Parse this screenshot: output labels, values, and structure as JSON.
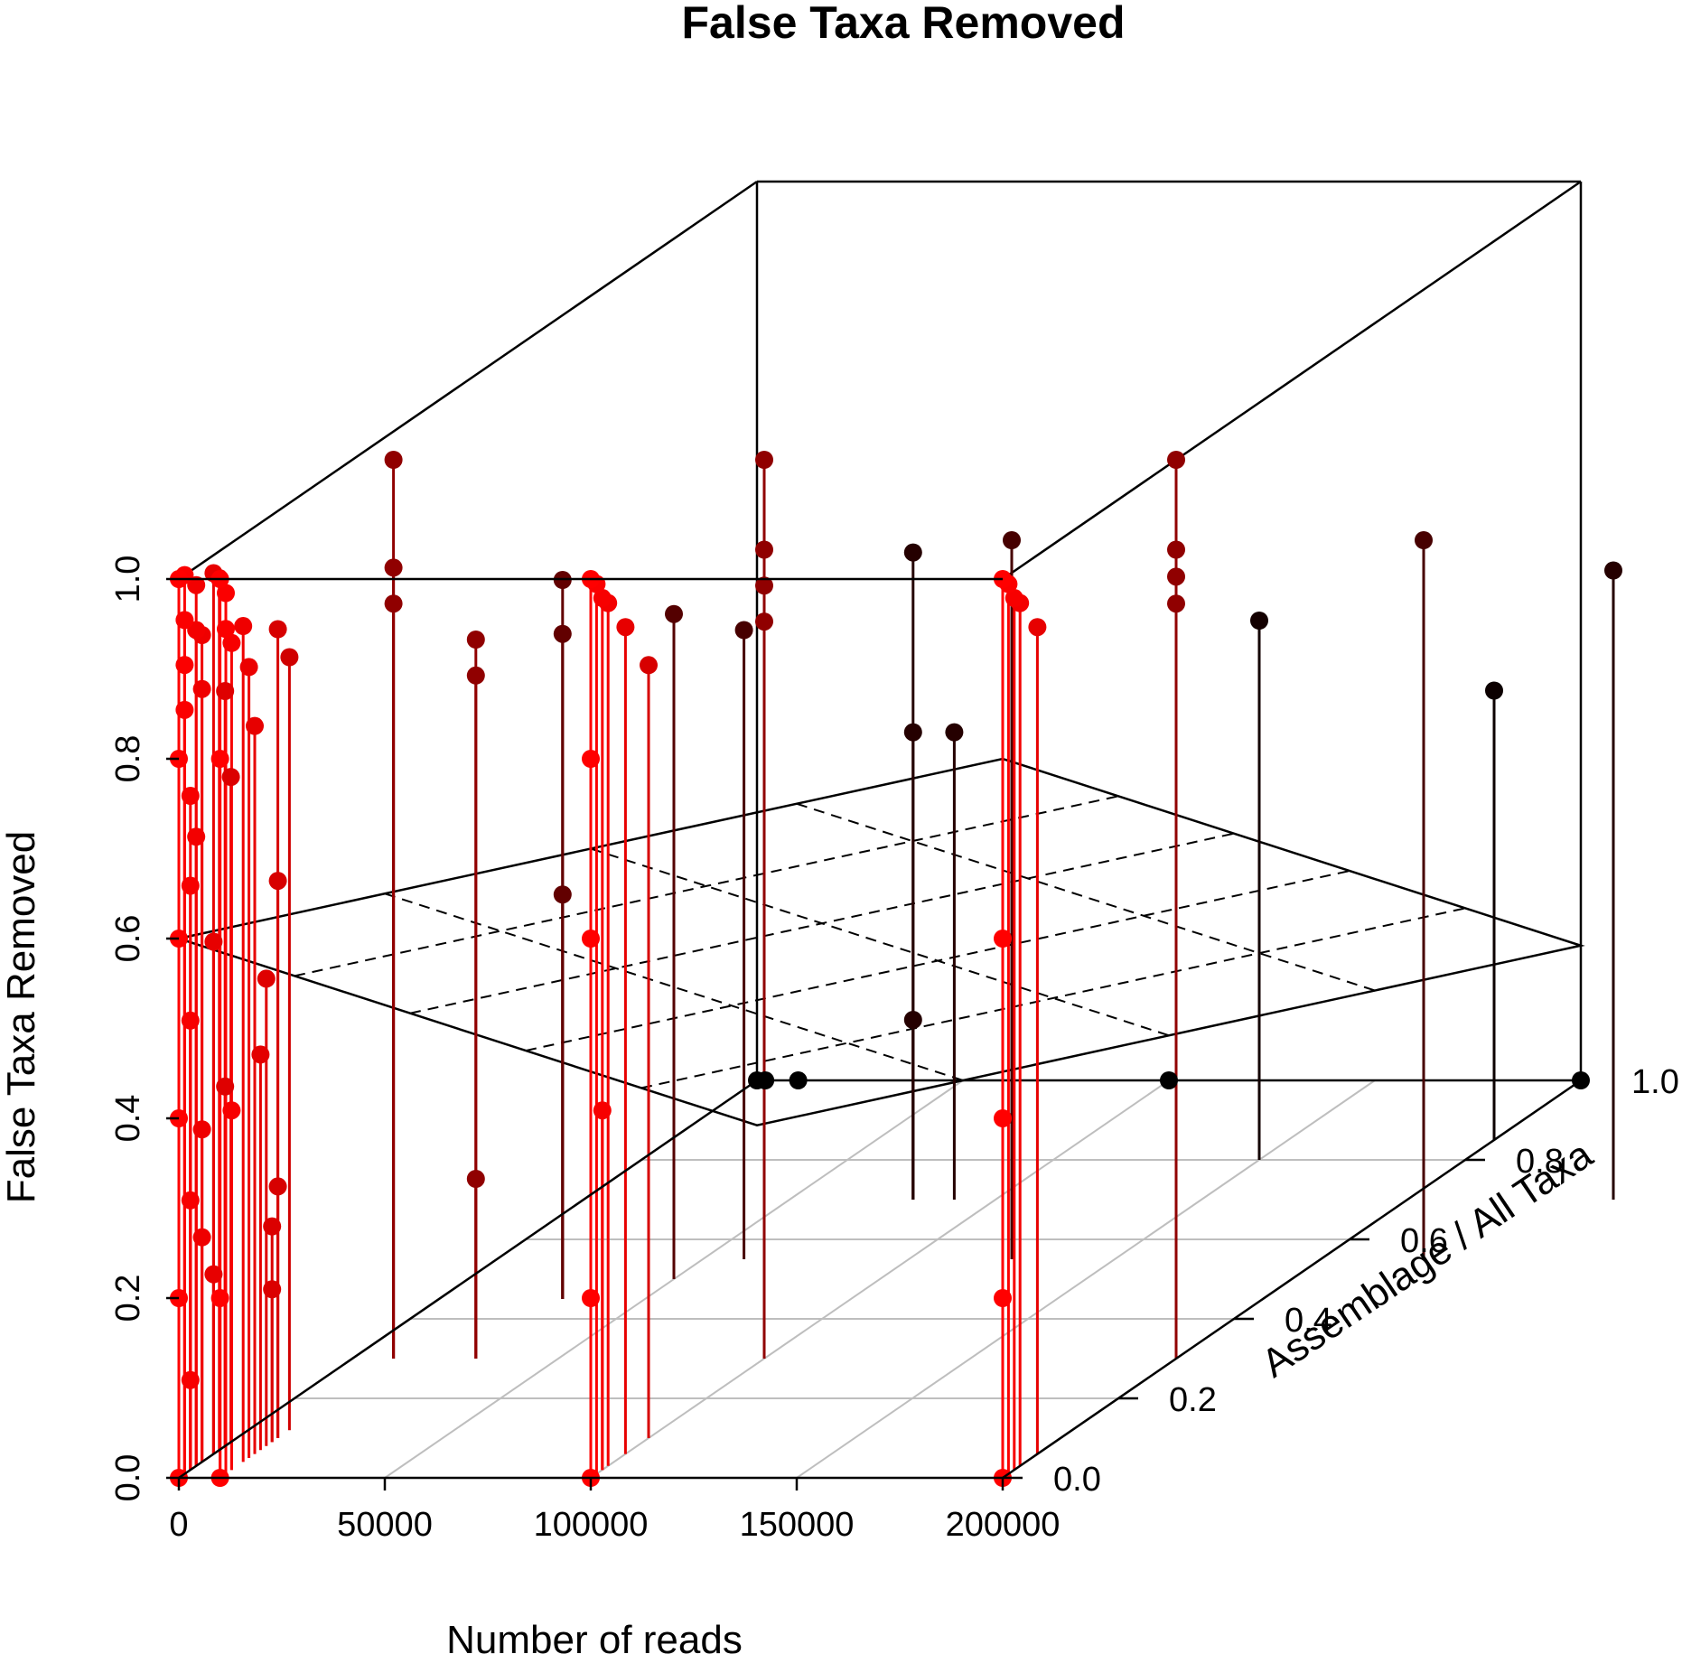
{
  "chart_data": {
    "type": "scatter3d",
    "title": "False Taxa Removed",
    "xlabel": "Number of reads",
    "ylabel": "Assemblage / All Taxa",
    "zlabel": "False Taxa Removed",
    "xlim": [
      0,
      200000
    ],
    "ylim": [
      0,
      1
    ],
    "zlim": [
      0,
      1
    ],
    "x_ticks": [
      "0",
      "50000",
      "100000",
      "150000",
      "200000"
    ],
    "y_ticks": [
      "0.0",
      "0.2",
      "0.4",
      "0.6",
      "0.8",
      "1.0"
    ],
    "z_ticks": [
      "0.0",
      "0.2",
      "0.4",
      "0.6",
      "0.8",
      "1.0"
    ],
    "regression_plane": {
      "intercept": 0.6,
      "slope_x_per_100000": 0.1,
      "slope_y": -0.65
    },
    "colors": {
      "low_y": "#ff0000",
      "high_y": "#000000",
      "line": "#000000",
      "grid": "#bebebe"
    },
    "points": [
      {
        "x": 0,
        "y": 0.0,
        "z": 1.0
      },
      {
        "x": 0,
        "y": 0.0,
        "z": 0.8
      },
      {
        "x": 0,
        "y": 0.0,
        "z": 0.6
      },
      {
        "x": 0,
        "y": 0.0,
        "z": 0.4
      },
      {
        "x": 0,
        "y": 0.0,
        "z": 0.2
      },
      {
        "x": 0,
        "y": 0.0,
        "z": 0.0
      },
      {
        "x": 0,
        "y": 0.01,
        "z": 1.0
      },
      {
        "x": 0,
        "y": 0.01,
        "z": 0.95
      },
      {
        "x": 0,
        "y": 0.01,
        "z": 0.9
      },
      {
        "x": 0,
        "y": 0.01,
        "z": 0.85
      },
      {
        "x": 0,
        "y": 0.02,
        "z": 0.75
      },
      {
        "x": 0,
        "y": 0.02,
        "z": 0.65
      },
      {
        "x": 0,
        "y": 0.02,
        "z": 0.5
      },
      {
        "x": 0,
        "y": 0.02,
        "z": 0.3
      },
      {
        "x": 0,
        "y": 0.02,
        "z": 0.1
      },
      {
        "x": 0,
        "y": 0.03,
        "z": 0.98
      },
      {
        "x": 0,
        "y": 0.03,
        "z": 0.93
      },
      {
        "x": 0,
        "y": 0.03,
        "z": 0.7
      },
      {
        "x": 0,
        "y": 0.04,
        "z": 0.92
      },
      {
        "x": 0,
        "y": 0.04,
        "z": 0.86
      },
      {
        "x": 0,
        "y": 0.04,
        "z": 0.37
      },
      {
        "x": 0,
        "y": 0.04,
        "z": 0.25
      },
      {
        "x": 0,
        "y": 0.06,
        "z": 0.98
      },
      {
        "x": 0,
        "y": 0.06,
        "z": 0.57
      },
      {
        "x": 0,
        "y": 0.06,
        "z": 0.2
      },
      {
        "x": 0,
        "y": 0.07,
        "z": 0.97
      },
      {
        "x": 0,
        "y": 0.08,
        "z": 0.84
      },
      {
        "x": 0,
        "y": 0.08,
        "z": 0.4
      },
      {
        "x": 0,
        "y": 0.09,
        "z": 0.74
      },
      {
        "x": 10000,
        "y": 0.0,
        "z": 1.0
      },
      {
        "x": 10000,
        "y": 0.0,
        "z": 0.8
      },
      {
        "x": 10000,
        "y": 0.0,
        "z": 0.2
      },
      {
        "x": 10000,
        "y": 0.0,
        "z": 0.0
      },
      {
        "x": 10000,
        "y": 0.01,
        "z": 0.98
      },
      {
        "x": 10000,
        "y": 0.01,
        "z": 0.94
      },
      {
        "x": 10000,
        "y": 0.02,
        "z": 0.92
      },
      {
        "x": 10000,
        "y": 0.02,
        "z": 0.4
      },
      {
        "x": 10000,
        "y": 0.04,
        "z": 0.93
      },
      {
        "x": 10000,
        "y": 0.05,
        "z": 0.88
      },
      {
        "x": 10000,
        "y": 0.06,
        "z": 0.81
      },
      {
        "x": 10000,
        "y": 0.07,
        "z": 0.44
      },
      {
        "x": 10000,
        "y": 0.08,
        "z": 0.52
      },
      {
        "x": 10000,
        "y": 0.09,
        "z": 0.24
      },
      {
        "x": 10000,
        "y": 0.09,
        "z": 0.17
      },
      {
        "x": 10000,
        "y": 0.1,
        "z": 0.9
      },
      {
        "x": 10000,
        "y": 0.1,
        "z": 0.62
      },
      {
        "x": 10000,
        "y": 0.1,
        "z": 0.28
      },
      {
        "x": 10000,
        "y": 0.12,
        "z": 0.86
      },
      {
        "x": 100000,
        "y": 0.0,
        "z": 1.0
      },
      {
        "x": 100000,
        "y": 0.0,
        "z": 0.8
      },
      {
        "x": 100000,
        "y": 0.0,
        "z": 0.6
      },
      {
        "x": 100000,
        "y": 0.0,
        "z": 0.2
      },
      {
        "x": 100000,
        "y": 0.0,
        "z": 0.0
      },
      {
        "x": 100000,
        "y": 0.01,
        "z": 0.99
      },
      {
        "x": 100000,
        "y": 0.02,
        "z": 0.97
      },
      {
        "x": 100000,
        "y": 0.02,
        "z": 0.4
      },
      {
        "x": 100000,
        "y": 0.03,
        "z": 0.96
      },
      {
        "x": 100000,
        "y": 0.06,
        "z": 0.92
      },
      {
        "x": 100000,
        "y": 0.1,
        "z": 0.86
      },
      {
        "x": 200000,
        "y": 0.0,
        "z": 1.0
      },
      {
        "x": 200000,
        "y": 0.0,
        "z": 0.6
      },
      {
        "x": 200000,
        "y": 0.0,
        "z": 0.4
      },
      {
        "x": 200000,
        "y": 0.0,
        "z": 0.2
      },
      {
        "x": 200000,
        "y": 0.0,
        "z": 0.0
      },
      {
        "x": 200000,
        "y": 0.01,
        "z": 0.99
      },
      {
        "x": 200000,
        "y": 0.02,
        "z": 0.97
      },
      {
        "x": 200000,
        "y": 0.03,
        "z": 0.96
      },
      {
        "x": 200000,
        "y": 0.06,
        "z": 0.92
      },
      {
        "x": 10000,
        "y": 0.3,
        "z": 1.0
      },
      {
        "x": 10000,
        "y": 0.3,
        "z": 0.88
      },
      {
        "x": 10000,
        "y": 0.3,
        "z": 0.84
      },
      {
        "x": 30000,
        "y": 0.3,
        "z": 0.8
      },
      {
        "x": 30000,
        "y": 0.3,
        "z": 0.76
      },
      {
        "x": 30000,
        "y": 0.3,
        "z": 0.2
      },
      {
        "x": 100000,
        "y": 0.3,
        "z": 1.0
      },
      {
        "x": 100000,
        "y": 0.3,
        "z": 0.9
      },
      {
        "x": 100000,
        "y": 0.3,
        "z": 0.86
      },
      {
        "x": 100000,
        "y": 0.3,
        "z": 0.82
      },
      {
        "x": 200000,
        "y": 0.3,
        "z": 1.0
      },
      {
        "x": 200000,
        "y": 0.3,
        "z": 0.9
      },
      {
        "x": 200000,
        "y": 0.3,
        "z": 0.87
      },
      {
        "x": 200000,
        "y": 0.3,
        "z": 0.84
      },
      {
        "x": 30000,
        "y": 0.45,
        "z": 0.8
      },
      {
        "x": 30000,
        "y": 0.45,
        "z": 0.74
      },
      {
        "x": 30000,
        "y": 0.45,
        "z": 0.45
      },
      {
        "x": 50000,
        "y": 0.5,
        "z": 0.74
      },
      {
        "x": 60000,
        "y": 0.55,
        "z": 0.7
      },
      {
        "x": 125000,
        "y": 0.55,
        "z": 0.8
      },
      {
        "x": 225000,
        "y": 0.55,
        "z": 0.8
      },
      {
        "x": 80000,
        "y": 0.7,
        "z": 0.72
      },
      {
        "x": 80000,
        "y": 0.7,
        "z": 0.52
      },
      {
        "x": 80000,
        "y": 0.7,
        "z": 0.2
      },
      {
        "x": 90000,
        "y": 0.7,
        "z": 0.52
      },
      {
        "x": 250000,
        "y": 0.7,
        "z": 0.7
      },
      {
        "x": 150000,
        "y": 0.8,
        "z": 0.6
      },
      {
        "x": 200000,
        "y": 0.85,
        "z": 0.5
      },
      {
        "x": 300000,
        "y": 0.85,
        "z": 0.25
      },
      {
        "x": 0,
        "y": 1.0,
        "z": 0.0
      },
      {
        "x": 2000,
        "y": 1.0,
        "z": 0.0
      },
      {
        "x": 10000,
        "y": 1.0,
        "z": 0.0
      },
      {
        "x": 100000,
        "y": 1.0,
        "z": 0.0
      },
      {
        "x": 200000,
        "y": 1.0,
        "z": 0.0
      }
    ]
  }
}
